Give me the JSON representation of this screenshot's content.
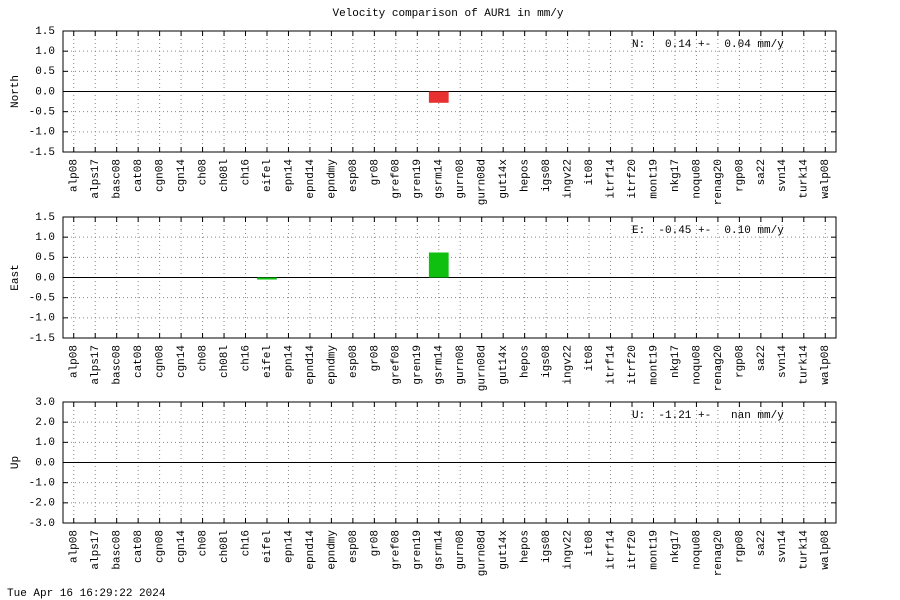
{
  "title": "Velocity comparison of AUR1 in mm/y",
  "timestamp": "Tue Apr 16 16:29:22 2024",
  "chart_data": [
    {
      "type": "bar",
      "ylabel": "North",
      "annotation": "N:   0.14 +-  0.04 mm/y",
      "color": "#e83030",
      "categories": [
        "alp08",
        "alps17",
        "basc08",
        "cat08",
        "cgn08",
        "cgn14",
        "ch08",
        "ch08l",
        "ch16",
        "eifel",
        "epn14",
        "epnd14",
        "epndmy",
        "esp08",
        "gr08",
        "gref08",
        "gren19",
        "gsrm14",
        "gurn08",
        "gurn08d",
        "gut14x",
        "hepos",
        "igs08",
        "ingv22",
        "it08",
        "itrf14",
        "itrf20",
        "mont19",
        "nkg17",
        "noqu08",
        "renag20",
        "rgp08",
        "sa22",
        "svn14",
        "turk14",
        "walp08"
      ],
      "values": [
        null,
        null,
        null,
        null,
        null,
        null,
        null,
        null,
        null,
        null,
        null,
        null,
        null,
        null,
        null,
        null,
        null,
        -0.28,
        null,
        null,
        null,
        null,
        null,
        null,
        null,
        null,
        null,
        null,
        null,
        null,
        null,
        null,
        null,
        null,
        null,
        null
      ],
      "ylim": [
        -1.5,
        1.5
      ],
      "yticks": [
        1.5,
        {
          "value": 1,
          "label": "1.0"
        },
        0.5,
        {
          "value": 0,
          "label": "0.0"
        },
        -0.5,
        {
          "value": -1,
          "label": "-1.0"
        },
        -1.5
      ],
      "grid": true
    },
    {
      "type": "bar",
      "ylabel": "East",
      "annotation": "E:  -0.45 +-  0.10 mm/y",
      "color": "#10c010",
      "categories": [
        "alp08",
        "alps17",
        "basc08",
        "cat08",
        "cgn08",
        "cgn14",
        "ch08",
        "ch08l",
        "ch16",
        "eifel",
        "epn14",
        "epnd14",
        "epndmy",
        "esp08",
        "gr08",
        "gref08",
        "gren19",
        "gsrm14",
        "gurn08",
        "gurn08d",
        "gut14x",
        "hepos",
        "igs08",
        "ingv22",
        "it08",
        "itrf14",
        "itrf20",
        "mont19",
        "nkg17",
        "noqu08",
        "renag20",
        "rgp08",
        "sa22",
        "svn14",
        "turk14",
        "walp08"
      ],
      "values": [
        null,
        null,
        null,
        null,
        null,
        null,
        null,
        null,
        null,
        -0.05,
        null,
        null,
        null,
        null,
        null,
        null,
        null,
        0.62,
        null,
        null,
        null,
        null,
        null,
        null,
        null,
        null,
        null,
        null,
        null,
        null,
        null,
        null,
        null,
        null,
        null,
        null
      ],
      "ylim": [
        -1.5,
        1.5
      ],
      "yticks": [
        1.5,
        {
          "value": 1,
          "label": "1.0"
        },
        0.5,
        {
          "value": 0,
          "label": "0.0"
        },
        -0.5,
        {
          "value": -1,
          "label": "-1.0"
        },
        -1.5
      ],
      "grid": true
    },
    {
      "type": "bar",
      "ylabel": "Up",
      "annotation": "U:  -1.21 +-   nan mm/y",
      "categories": [
        "alp08",
        "alps17",
        "basc08",
        "cat08",
        "cgn08",
        "cgn14",
        "ch08",
        "ch08l",
        "ch16",
        "eifel",
        "epn14",
        "epnd14",
        "epndmy",
        "esp08",
        "gr08",
        "gref08",
        "gren19",
        "gsrm14",
        "gurn08",
        "gurn08d",
        "gut14x",
        "hepos",
        "igs08",
        "ingv22",
        "it08",
        "itrf14",
        "itrf20",
        "mont19",
        "nkg17",
        "noqu08",
        "renag20",
        "rgp08",
        "sa22",
        "svn14",
        "turk14",
        "walp08"
      ],
      "values": [
        null,
        null,
        null,
        null,
        null,
        null,
        null,
        null,
        null,
        null,
        null,
        null,
        null,
        null,
        null,
        null,
        null,
        null,
        null,
        null,
        null,
        null,
        null,
        null,
        null,
        null,
        null,
        null,
        null,
        null,
        null,
        null,
        null,
        null,
        null,
        null
      ],
      "ylim": [
        -3,
        3
      ],
      "yticks": [
        {
          "value": 3,
          "label": "3.0"
        },
        {
          "value": 2,
          "label": "2.0"
        },
        {
          "value": 1,
          "label": "1.0"
        },
        {
          "value": 0,
          "label": "0.0"
        },
        {
          "value": -1,
          "label": "-1.0"
        },
        {
          "value": -2,
          "label": "-2.0"
        },
        {
          "value": -3,
          "label": "-3.0"
        }
      ],
      "grid": true
    }
  ]
}
